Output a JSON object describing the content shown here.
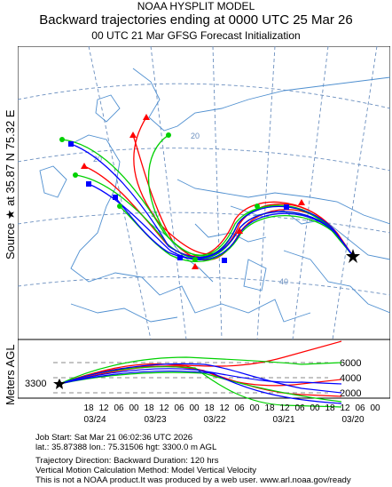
{
  "header": {
    "model": "NOAA HYSPLIT MODEL",
    "title": "Backward trajectories ending at 0000 UTC 25 Mar 26",
    "subtitle": "00 UTC 21 Mar    GFSG  Forecast Initialization"
  },
  "side_label": {
    "source": "Source ★ at   35.87 N   75.32 E",
    "meters": "Meters AGL"
  },
  "map": {
    "lat_labels": [
      "20",
      "20",
      "30",
      "40"
    ],
    "source_marker": "source-star-icon",
    "colors": {
      "red": "#ff0000",
      "blue": "#0000ff",
      "green": "#00d000",
      "coast": "#5b9bd5",
      "grid": "#6699cc"
    }
  },
  "height_panel": {
    "start_height": "3300",
    "right_ticks": [
      "6000",
      "4000",
      "2000"
    ],
    "time_ticks": [
      "18",
      "12",
      "06",
      "00",
      "18",
      "12",
      "06",
      "00",
      "18",
      "12",
      "06",
      "00",
      "18",
      "12",
      "06",
      "00",
      "18",
      "12",
      "06",
      "00"
    ],
    "date_labels": [
      "03/24",
      "03/23",
      "03/22",
      "03/21",
      "03/20"
    ]
  },
  "footer": {
    "line1": "Job Start: Sat Mar 21 06:02:36 UTC 2026",
    "line2": "lat.: 35.87388   lon.: 75.31506   hgt: 3300.0 m AGL",
    "line3": "Trajectory Direction: Backward       Duration: 120 hrs",
    "line4": "Vertical Motion Calculation Method: Model Vertical Velocity",
    "line5": "This is not a NOAA product.It was produced by a web user. www.arl.noaa.gov/ready"
  }
}
